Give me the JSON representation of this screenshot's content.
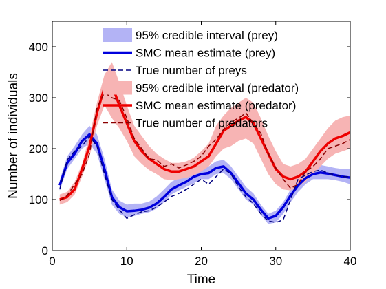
{
  "chart_data": {
    "type": "line",
    "title": "",
    "xlabel": "Time",
    "ylabel": "Number of individuals",
    "xlim": [
      0,
      40
    ],
    "ylim": [
      0,
      450
    ],
    "xticks": [
      0,
      10,
      20,
      30,
      40
    ],
    "yticks": [
      0,
      100,
      200,
      300,
      400
    ],
    "grid": false,
    "legend_position": "top-right",
    "x": [
      1,
      2,
      3,
      4,
      5,
      6,
      7,
      8,
      9,
      10,
      11,
      12,
      13,
      14,
      15,
      16,
      17,
      18,
      19,
      20,
      21,
      22,
      23,
      24,
      25,
      26,
      27,
      28,
      29,
      30,
      31,
      32,
      33,
      34,
      35,
      36,
      37,
      38,
      39,
      40
    ],
    "series": [
      {
        "name": "95% credible interval (prey)",
        "kind": "band",
        "color": "#b3b3f5",
        "lower": [
          118,
          160,
          180,
          200,
          210,
          190,
          140,
          90,
          72,
          65,
          68,
          72,
          75,
          82,
          95,
          110,
          118,
          125,
          132,
          140,
          140,
          150,
          152,
          140,
          120,
          100,
          90,
          70,
          52,
          55,
          72,
          95,
          115,
          130,
          140,
          140,
          140,
          138,
          135,
          130
        ],
        "upper": [
          138,
          185,
          205,
          228,
          245,
          228,
          180,
          120,
          98,
          90,
          92,
          92,
          96,
          106,
          120,
          135,
          142,
          150,
          160,
          162,
          165,
          175,
          178,
          165,
          145,
          125,
          112,
          90,
          72,
          78,
          95,
          120,
          140,
          155,
          162,
          168,
          165,
          162,
          160,
          160
        ]
      },
      {
        "name": "SMC mean estimate (prey)",
        "kind": "line",
        "color": "#0000dd",
        "values": [
          128,
          172,
          190,
          215,
          228,
          210,
          160,
          105,
          85,
          77,
          78,
          80,
          84,
          92,
          105,
          120,
          128,
          135,
          145,
          150,
          152,
          162,
          165,
          152,
          132,
          112,
          100,
          80,
          63,
          68,
          85,
          108,
          128,
          142,
          150,
          153,
          151,
          148,
          145,
          143
        ]
      },
      {
        "name": "True number of preys",
        "kind": "dashed",
        "color": "#000080",
        "values": [
          120,
          178,
          195,
          205,
          224,
          205,
          150,
          100,
          80,
          63,
          70,
          76,
          78,
          85,
          95,
          106,
          112,
          120,
          130,
          140,
          130,
          145,
          160,
          150,
          125,
          105,
          92,
          72,
          58,
          55,
          60,
          100,
          140,
          148,
          155,
          158,
          152,
          148,
          145,
          145
        ]
      },
      {
        "name": "95% credible interval (predator)",
        "kind": "band",
        "color": "#f7b4b4",
        "lower": [
          90,
          95,
          110,
          145,
          185,
          245,
          285,
          260,
          240,
          215,
          185,
          170,
          158,
          150,
          140,
          138,
          140,
          143,
          148,
          155,
          165,
          185,
          200,
          205,
          215,
          220,
          210,
          180,
          150,
          130,
          120,
          118,
          125,
          135,
          150,
          165,
          180,
          190,
          195,
          200
        ],
        "upper": [
          110,
          115,
          135,
          170,
          225,
          290,
          345,
          370,
          330,
          285,
          245,
          225,
          205,
          190,
          180,
          172,
          172,
          175,
          182,
          195,
          210,
          245,
          265,
          280,
          290,
          300,
          290,
          260,
          225,
          195,
          170,
          165,
          170,
          180,
          200,
          220,
          240,
          255,
          262,
          265
        ]
      },
      {
        "name": "SMC mean estimate (predator)",
        "kind": "line",
        "color": "#ee0000",
        "values": [
          100,
          105,
          120,
          160,
          205,
          270,
          320,
          325,
          285,
          250,
          215,
          195,
          180,
          170,
          160,
          155,
          155,
          160,
          165,
          175,
          185,
          210,
          235,
          245,
          255,
          262,
          250,
          220,
          190,
          160,
          145,
          140,
          145,
          155,
          175,
          195,
          210,
          220,
          225,
          232
        ]
      },
      {
        "name": "True number of predators",
        "kind": "dashed",
        "color": "#8b0000",
        "values": [
          98,
          108,
          130,
          150,
          190,
          280,
          310,
          300,
          295,
          260,
          220,
          200,
          180,
          178,
          165,
          170,
          162,
          168,
          175,
          185,
          205,
          218,
          238,
          252,
          260,
          270,
          250,
          230,
          190,
          162,
          140,
          122,
          130,
          155,
          165,
          180,
          200,
          205,
          210,
          218
        ]
      }
    ]
  }
}
